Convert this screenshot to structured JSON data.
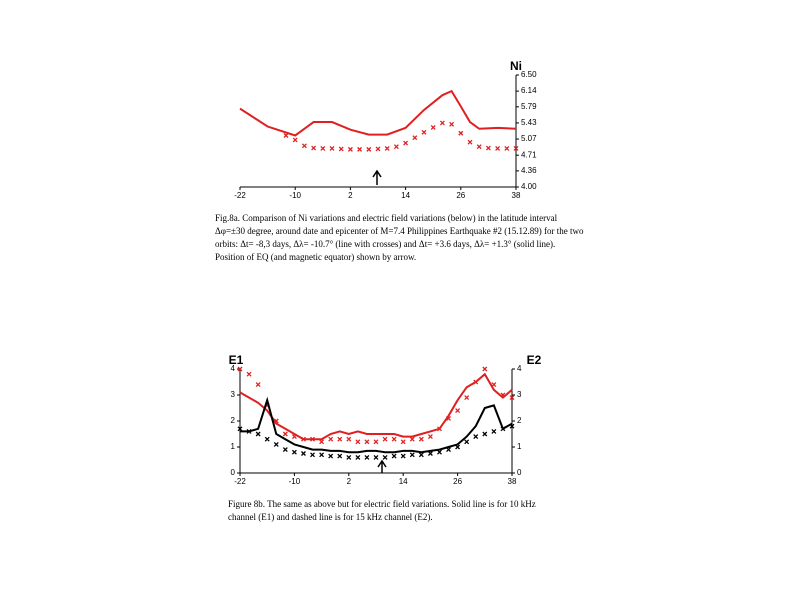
{
  "chart_data": [
    {
      "type": "line",
      "y_label": "Ni",
      "xlim": [
        -22,
        38
      ],
      "xticks": [
        -22,
        -10,
        2,
        14,
        26,
        38
      ],
      "ylim": [
        4.0,
        6.5
      ],
      "yticks": [
        {
          "value": 4.0,
          "label": "4.00"
        },
        {
          "value": 4.36,
          "label": "4.36"
        },
        {
          "value": 4.71,
          "label": "4.71"
        },
        {
          "value": 5.07,
          "label": "5.07"
        },
        {
          "value": 5.43,
          "label": "5.43"
        },
        {
          "value": 5.79,
          "label": "5.79"
        },
        {
          "value": 6.14,
          "label": "6.14"
        },
        {
          "value": 6.5,
          "label": "6.50"
        }
      ],
      "series": [
        {
          "style": "solid",
          "color": "#e02020",
          "x": [
            -22,
            -16,
            -10,
            -6,
            -2,
            2,
            6,
            10,
            14,
            18,
            22,
            24,
            26,
            28,
            30,
            34,
            38
          ],
          "values": [
            5.75,
            5.35,
            5.15,
            5.45,
            5.45,
            5.28,
            5.17,
            5.17,
            5.32,
            5.72,
            6.05,
            6.14,
            5.8,
            5.45,
            5.3,
            5.32,
            5.3
          ]
        },
        {
          "style": "crosses",
          "color": "#e02020",
          "x": [
            -12,
            -10,
            -8,
            -6,
            -4,
            -2,
            0,
            2,
            4,
            6,
            8,
            10,
            12,
            14,
            16,
            18,
            20,
            22,
            24,
            26,
            28,
            30,
            32,
            34,
            36,
            38
          ],
          "values": [
            5.15,
            5.05,
            4.92,
            4.87,
            4.86,
            4.86,
            4.85,
            4.84,
            4.84,
            4.84,
            4.85,
            4.86,
            4.9,
            4.98,
            5.1,
            5.22,
            5.33,
            5.43,
            5.4,
            5.2,
            5.0,
            4.9,
            4.87,
            4.86,
            4.86,
            4.86
          ]
        }
      ],
      "caption": "Fig.8a. Comparison of Ni variations and electric field variations (below) in the latitude interval Δφ=±30 degree, around date and epicenter of M=7.4 Philippines Earthquake #2 (15.12.89) for the two orbits: Δt= -8,3 days, Δλ= -10.7° (line with crosses) and Δt= +3.6 days, Δλ= +1.3° (solid line). Position of EQ (and magnetic equator) shown by arrow."
    },
    {
      "type": "line",
      "y_label": "E1",
      "y2_label": "E2",
      "xlim": [
        -22,
        38
      ],
      "xticks": [
        -22,
        -10,
        2,
        14,
        26,
        38
      ],
      "ylim": [
        0,
        4
      ],
      "yticks": [
        0,
        1,
        2,
        3,
        4
      ],
      "y2lim": [
        0,
        4
      ],
      "y2ticks": [
        0,
        1,
        2,
        3,
        4
      ],
      "x": [
        -22,
        -20,
        -18,
        -16,
        -14,
        -12,
        -10,
        -8,
        -6,
        -4,
        -2,
        0,
        2,
        4,
        6,
        8,
        10,
        12,
        14,
        16,
        18,
        20,
        22,
        24,
        26,
        28,
        30,
        32,
        34,
        36,
        38
      ],
      "series": [
        {
          "style": "solid",
          "color": "#e02020",
          "axis": "y",
          "values": [
            3.1,
            2.9,
            2.7,
            2.4,
            1.9,
            1.7,
            1.5,
            1.3,
            1.3,
            1.3,
            1.5,
            1.6,
            1.5,
            1.6,
            1.5,
            1.5,
            1.5,
            1.5,
            1.4,
            1.4,
            1.5,
            1.6,
            1.7,
            2.2,
            2.8,
            3.3,
            3.5,
            3.8,
            3.2,
            2.9,
            3.2
          ]
        },
        {
          "style": "crosses",
          "color": "#e02020",
          "axis": "y2",
          "values": [
            4.0,
            3.8,
            3.4,
            2.6,
            2.0,
            1.5,
            1.4,
            1.3,
            1.3,
            1.2,
            1.3,
            1.3,
            1.3,
            1.2,
            1.2,
            1.2,
            1.3,
            1.3,
            1.2,
            1.3,
            1.3,
            1.4,
            1.7,
            2.1,
            2.4,
            2.9,
            3.5,
            4.0,
            3.4,
            3.0,
            2.9
          ]
        },
        {
          "style": "solid",
          "color": "#000000",
          "axis": "y",
          "values": [
            1.6,
            1.6,
            1.7,
            2.8,
            1.5,
            1.3,
            1.1,
            1.0,
            0.9,
            0.9,
            0.85,
            0.85,
            0.8,
            0.8,
            0.85,
            0.85,
            0.8,
            0.8,
            0.85,
            0.85,
            0.8,
            0.85,
            0.9,
            1.0,
            1.1,
            1.4,
            1.8,
            2.5,
            2.6,
            1.7,
            1.9
          ]
        },
        {
          "style": "crosses",
          "color": "#000000",
          "axis": "y2",
          "values": [
            1.7,
            1.6,
            1.5,
            1.3,
            1.1,
            0.9,
            0.8,
            0.75,
            0.7,
            0.7,
            0.65,
            0.65,
            0.6,
            0.6,
            0.6,
            0.6,
            0.6,
            0.65,
            0.65,
            0.7,
            0.7,
            0.75,
            0.8,
            0.9,
            1.0,
            1.2,
            1.4,
            1.5,
            1.6,
            1.7,
            1.8
          ]
        }
      ],
      "caption": "Figure 8b. The same as above but for electric field variations. Solid line is for 10 kHz channel (E1) and dashed line is for 15 kHz channel (E2)."
    }
  ]
}
